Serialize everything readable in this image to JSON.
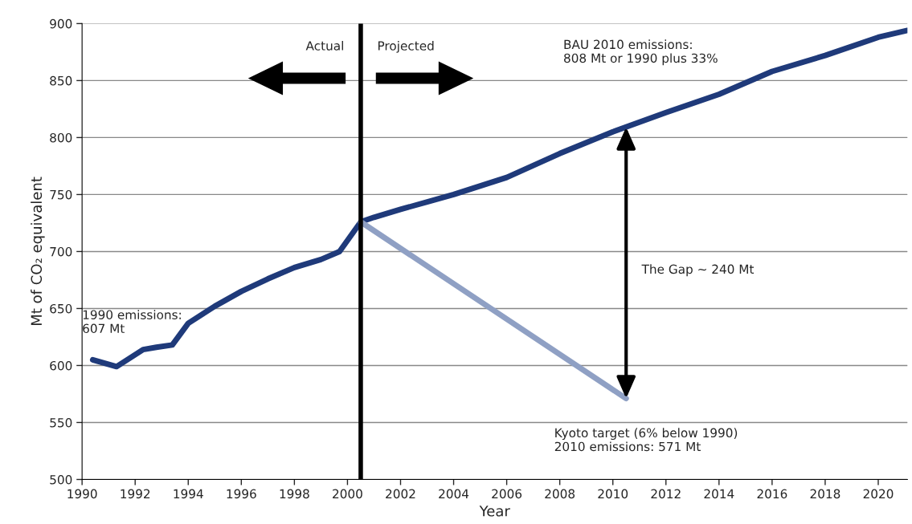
{
  "chart_data": {
    "type": "line",
    "xlabel": "Year",
    "ylabel": "Mt of CO₂ equivalent",
    "xlim": [
      1990,
      2021.1
    ],
    "xticks": [
      1990,
      1992,
      1994,
      1996,
      1998,
      2000,
      2002,
      2004,
      2006,
      2008,
      2010,
      2012,
      2014,
      2016,
      2018,
      2020
    ],
    "ylim": [
      500,
      900
    ],
    "yticks": [
      500,
      550,
      600,
      650,
      700,
      750,
      800,
      850,
      900
    ],
    "grid": "y",
    "series": [
      {
        "color": "#1f3a7a",
        "x": [
          1990.4,
          1991.3,
          1992.3,
          1992.8,
          1993.4,
          1994,
          1995,
          1996,
          1997,
          1998,
          1999,
          1999.7,
          2000.5,
          2001,
          2002,
          2004,
          2006,
          2008,
          2010,
          2012,
          2014,
          2016,
          2018,
          2020,
          2021.1
        ],
        "values": [
          605,
          599,
          614,
          616,
          618,
          637,
          652,
          665,
          676,
          686,
          693,
          700,
          726,
          730,
          737,
          750,
          765,
          786,
          805,
          822,
          838,
          858,
          872,
          888,
          894
        ]
      },
      {
        "color": "#8fa0c4",
        "x": [
          2000.5,
          2010.5
        ],
        "values": [
          726,
          571
        ]
      }
    ],
    "ref_lines": [
      {
        "axis": "x",
        "value": 2000.5,
        "color": "#000000"
      }
    ],
    "annotations": [
      "Actual",
      "Projected",
      "The Gap ~ 240 Mt",
      "1990 emissions:\n607 Mt",
      "BAU 2010 emissions:\n808 Mt or 1990 plus 33%",
      "Kyoto target (6% below 1990)\n2010 emissions: 571 Mt"
    ]
  }
}
